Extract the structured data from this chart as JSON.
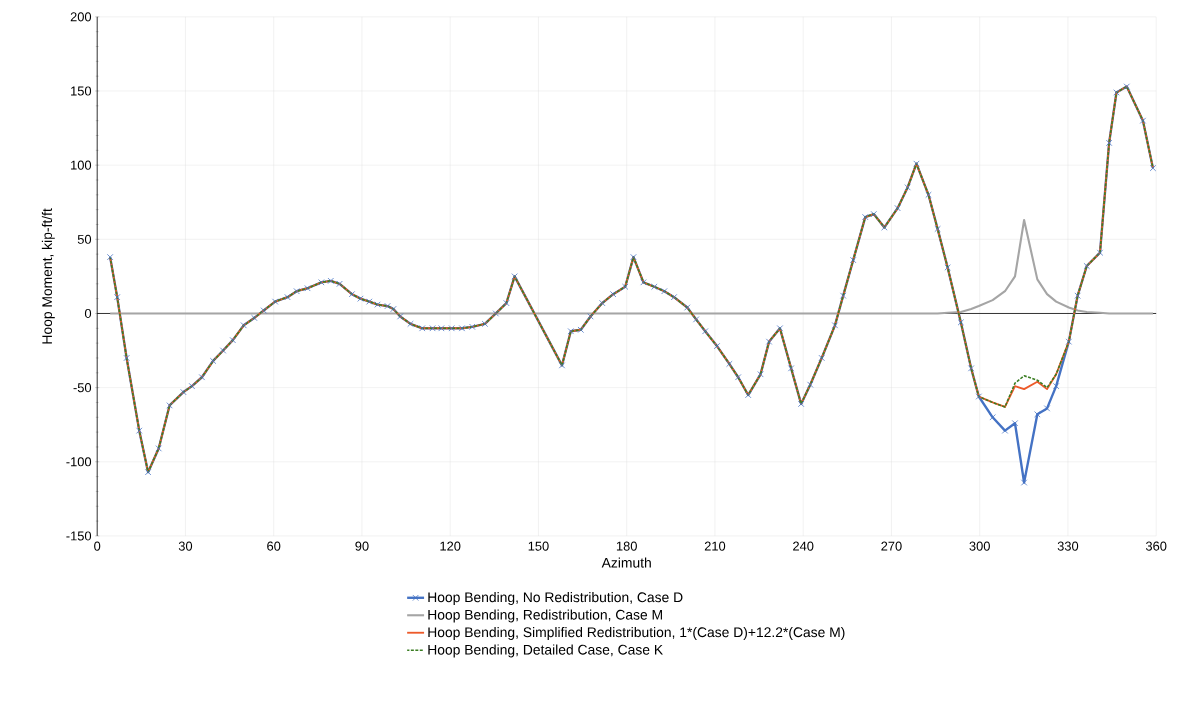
{
  "chart_data": {
    "type": "line",
    "xlabel": "Azimuth",
    "ylabel": "Hoop Moment, kip-ft/ft",
    "x": [
      4.4,
      6.8,
      10,
      14.3,
      17.3,
      20.9,
      24.6,
      29.3,
      32.2,
      35.6,
      39.4,
      42.8,
      46.1,
      49.8,
      53.4,
      56.6,
      60.5,
      64.7,
      67.8,
      71.5,
      76.2,
      79.4,
      82.4,
      86.6,
      89.5,
      92.5,
      95.3,
      98.7,
      100.7,
      103,
      106.5,
      110.5,
      114,
      117,
      120.5,
      124,
      127.5,
      131.8,
      135.5,
      139.1,
      141.9,
      158,
      161,
      164.4,
      167.7,
      171.7,
      175.4,
      179.5,
      182.3,
      185.7,
      189.4,
      192.8,
      196.1,
      200.6,
      203.6,
      206.7,
      210.7,
      214.9,
      217.9,
      221.3,
      225.5,
      228.4,
      232.1,
      235.9,
      239.3,
      242.4,
      246.3,
      250.8,
      253.6,
      257,
      261.1,
      264,
      267.6,
      272.1,
      275.5,
      278.5,
      282.6,
      285.7,
      289.1,
      293.6,
      297.1,
      299.7,
      304.4,
      308.6,
      312,
      315.1,
      319.6,
      322.9,
      326,
      330.3,
      333.3,
      336.4,
      340.9,
      344,
      346.5,
      350,
      355.5,
      358.9
    ],
    "series": [
      {
        "name": "Hoop Bending, No Redistribution, Case D",
        "color": "#4472c4",
        "marker": "cross",
        "values": [
          38,
          11,
          -30,
          -79,
          -107,
          -91,
          -62,
          -53,
          -49,
          -43,
          -32,
          -25,
          -18,
          -8,
          -3,
          2,
          8,
          11,
          15,
          17,
          21,
          22,
          20,
          13,
          10,
          8,
          6,
          5,
          3,
          -2,
          -7,
          -10,
          -10,
          -10,
          -10,
          -10,
          -9,
          -7,
          0,
          7,
          25,
          -35,
          -12,
          -11,
          -2,
          7,
          13,
          18,
          38,
          21,
          18,
          15,
          11,
          4,
          -4,
          -12,
          -22,
          -34,
          -43,
          -55,
          -41,
          -19,
          -10,
          -37,
          -61,
          -48,
          -30,
          -8,
          12,
          36,
          65,
          67,
          58,
          71,
          85,
          101,
          80,
          57,
          31,
          -6,
          -37,
          -56,
          -70,
          -79,
          -74,
          -114,
          -68,
          -64,
          -49,
          -19,
          12,
          32,
          41,
          115,
          149,
          153,
          130,
          98
        ]
      },
      {
        "name": "Hoop Bending, Redistribution, Case M",
        "color": "#a5a5a5",
        "values": [
          0,
          0,
          0,
          0,
          0,
          0,
          0,
          0,
          0,
          0,
          0,
          0,
          0,
          0,
          0,
          0,
          0,
          0,
          0,
          0,
          0,
          0,
          0,
          0,
          0,
          0,
          0,
          0,
          0,
          0,
          0,
          0,
          0,
          0,
          0,
          0,
          0,
          0,
          0,
          0,
          0,
          0,
          0,
          0,
          0,
          0,
          0,
          0,
          0,
          0,
          0,
          0,
          0,
          0,
          0,
          0,
          0,
          0,
          0,
          0,
          0,
          0,
          0,
          0,
          0,
          0,
          0,
          0,
          0,
          0,
          0,
          0,
          0,
          0,
          0,
          0,
          0,
          0,
          0.5,
          1,
          3,
          5,
          9,
          15,
          25,
          63,
          23,
          13,
          8,
          4,
          2,
          1,
          0.5,
          0,
          0,
          0,
          0,
          0
        ]
      },
      {
        "name": "Hoop Bending, Simplified Redistribution, 1*(Case D)+12.2*(Case M)",
        "color": "#ed5a2a",
        "values": [
          38,
          11,
          -30,
          -79,
          -107,
          -91,
          -62,
          -53,
          -49,
          -43,
          -32,
          -25,
          -18,
          -8,
          -3,
          2,
          8,
          11,
          15,
          17,
          21,
          22,
          20,
          13,
          10,
          8,
          6,
          5,
          3,
          -2,
          -7,
          -10,
          -10,
          -10,
          -10,
          -10,
          -9,
          -7,
          0,
          7,
          25,
          -35,
          -12,
          -11,
          -2,
          7,
          13,
          18,
          38,
          21,
          18,
          15,
          11,
          4,
          -4,
          -12,
          -22,
          -34,
          -43,
          -55,
          -41,
          -19,
          -10,
          -37,
          -61,
          -48,
          -30,
          -8,
          12,
          36,
          65,
          67,
          58,
          71,
          85,
          101,
          80,
          57,
          31,
          -6,
          -37,
          -56,
          -60,
          -63,
          -49,
          -51,
          -46,
          -51,
          -41,
          -19,
          12,
          32,
          41,
          115,
          149,
          153,
          130,
          98
        ]
      },
      {
        "name": "Hoop Bending, Detailed Case, Case K",
        "color": "#3a7d22",
        "line_style": "dashed",
        "values": [
          38,
          11,
          -30,
          -79,
          -107,
          -91,
          -62,
          -53,
          -49,
          -43,
          -32,
          -25,
          -18,
          -8,
          -3,
          2,
          8,
          11,
          15,
          17,
          21,
          22,
          20,
          13,
          10,
          8,
          6,
          5,
          3,
          -2,
          -7,
          -10,
          -10,
          -10,
          -10,
          -10,
          -9,
          -7,
          0,
          7,
          25,
          -35,
          -12,
          -11,
          -2,
          7,
          13,
          18,
          38,
          21,
          18,
          15,
          11,
          4,
          -4,
          -12,
          -22,
          -34,
          -43,
          -55,
          -41,
          -19,
          -10,
          -37,
          -61,
          -48,
          -30,
          -8,
          12,
          36,
          65,
          67,
          58,
          71,
          85,
          101,
          80,
          57,
          31,
          -6,
          -37,
          -56,
          -60,
          -63,
          -47,
          -42,
          -45,
          -50,
          -41,
          -19,
          12,
          32,
          41,
          115,
          149,
          153,
          130,
          98
        ]
      }
    ],
    "xlim": [
      0,
      360
    ],
    "xticks": [
      0,
      30,
      60,
      90,
      120,
      150,
      180,
      210,
      240,
      270,
      300,
      330,
      360
    ],
    "ylim": [
      -150,
      200
    ],
    "yticks": [
      -150,
      -100,
      -50,
      0,
      50,
      100,
      150,
      200
    ],
    "grid": true,
    "legend": "bottom"
  }
}
